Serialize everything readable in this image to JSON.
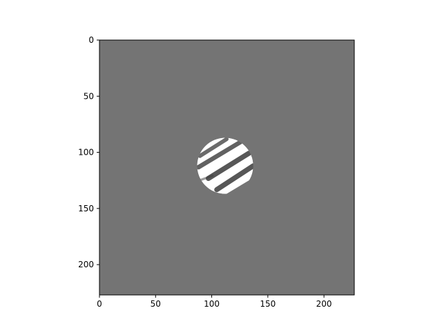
{
  "chart_data": {
    "type": "heatmap",
    "title": "",
    "xlabel": "",
    "ylabel": "",
    "xlim": [
      0,
      227
    ],
    "ylim": [
      227,
      0
    ],
    "x_ticks": [
      "0",
      "50",
      "100",
      "150",
      "200"
    ],
    "y_ticks": [
      "0",
      "50",
      "100",
      "150",
      "200"
    ],
    "x_tick_values": [
      0,
      50,
      100,
      150,
      200
    ],
    "y_tick_values": [
      0,
      50,
      100,
      150,
      200
    ],
    "image_shape": [
      227,
      227
    ],
    "grid": false,
    "colormap": "gray",
    "background_value": "#747474",
    "disk": {
      "center": [
        112,
        112
      ],
      "radius": 25,
      "fill": "#ffffff",
      "stripe_color": "#3a3a3a"
    }
  }
}
